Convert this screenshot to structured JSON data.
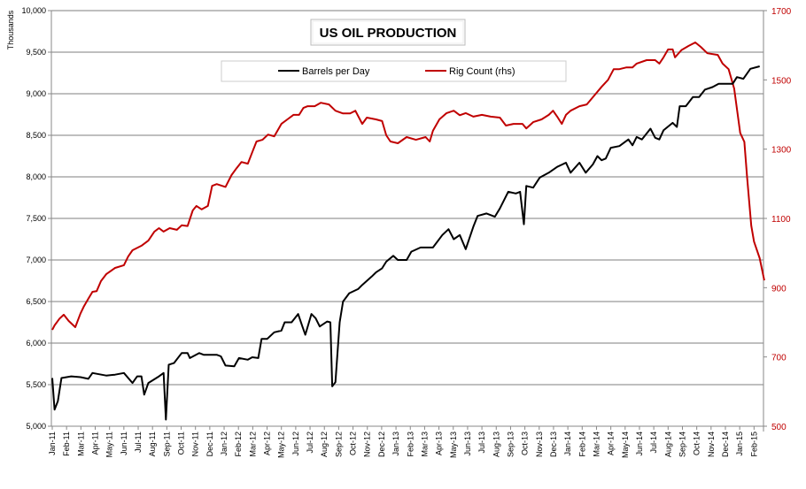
{
  "chart_data": {
    "type": "line",
    "title": "US OIL PRODUCTION",
    "ylabel": "Thousands",
    "ylim": [
      5000,
      10000
    ],
    "y_ticks": [
      "5,000",
      "5,500",
      "6,000",
      "6,500",
      "7,000",
      "7,500",
      "8,000",
      "8,500",
      "9,000",
      "9,500",
      "10,000"
    ],
    "y2lim": [
      500,
      1700
    ],
    "y2_ticks": [
      "500",
      "700",
      "900",
      "1100",
      "1300",
      "1500",
      "1700"
    ],
    "x_ticks": [
      "Jan-11",
      "Feb-11",
      "Mar-11",
      "Apr-11",
      "May-11",
      "Jun-11",
      "Jul-11",
      "Aug-11",
      "Sep-11",
      "Oct-11",
      "Nov-11",
      "Dec-11",
      "Jan-12",
      "Feb-12",
      "Mar-12",
      "Apr-12",
      "May-12",
      "Jun-12",
      "Jul-12",
      "Aug-12",
      "Sep-12",
      "Oct-12",
      "Nov-12",
      "Dec-12",
      "Jan-13",
      "Feb-13",
      "Mar-13",
      "Apr-13",
      "May-13",
      "Jun-13",
      "Jul-13",
      "Aug-13",
      "Sep-13",
      "Oct-13",
      "Nov-13",
      "Dec-13",
      "Jan-14",
      "Feb-14",
      "Mar-14",
      "Apr-14",
      "May-14",
      "Jun-14",
      "Jul-14",
      "Aug-14",
      "Sep-14",
      "Oct-14",
      "Nov-14",
      "Dec-14",
      "Jan-15",
      "Feb-15"
    ],
    "grid": true,
    "legend_placement": "top-center",
    "series": [
      {
        "name": "Barrels per Day",
        "axis": "left",
        "color": "#000000",
        "points": [
          [
            "2011-01-01",
            5580
          ],
          [
            "2011-01-06",
            5200
          ],
          [
            "2011-01-13",
            5300
          ],
          [
            "2011-01-21",
            5580
          ],
          [
            "2011-02-10",
            5600
          ],
          [
            "2011-02-28",
            5590
          ],
          [
            "2011-03-17",
            5570
          ],
          [
            "2011-03-26",
            5640
          ],
          [
            "2011-04-24",
            5610
          ],
          [
            "2011-05-13",
            5620
          ],
          [
            "2011-06-01",
            5640
          ],
          [
            "2011-06-19",
            5520
          ],
          [
            "2011-06-29",
            5600
          ],
          [
            "2011-07-08",
            5600
          ],
          [
            "2011-07-14",
            5380
          ],
          [
            "2011-07-23",
            5520
          ],
          [
            "2011-08-15",
            5600
          ],
          [
            "2011-08-25",
            5640
          ],
          [
            "2011-08-30",
            5080
          ],
          [
            "2011-09-05",
            5740
          ],
          [
            "2011-09-16",
            5760
          ],
          [
            "2011-10-02",
            5880
          ],
          [
            "2011-10-15",
            5880
          ],
          [
            "2011-10-20",
            5820
          ],
          [
            "2011-11-09",
            5880
          ],
          [
            "2011-11-18",
            5860
          ],
          [
            "2011-12-16",
            5860
          ],
          [
            "2011-12-25",
            5840
          ],
          [
            "2012-01-04",
            5730
          ],
          [
            "2012-01-23",
            5720
          ],
          [
            "2012-02-02",
            5820
          ],
          [
            "2012-02-20",
            5800
          ],
          [
            "2012-02-29",
            5830
          ],
          [
            "2012-03-13",
            5820
          ],
          [
            "2012-03-20",
            6050
          ],
          [
            "2012-04-01",
            6050
          ],
          [
            "2012-04-16",
            6130
          ],
          [
            "2012-05-01",
            6150
          ],
          [
            "2012-05-08",
            6250
          ],
          [
            "2012-05-23",
            6250
          ],
          [
            "2012-06-06",
            6350
          ],
          [
            "2012-06-15",
            6200
          ],
          [
            "2012-06-21",
            6100
          ],
          [
            "2012-07-04",
            6350
          ],
          [
            "2012-07-13",
            6300
          ],
          [
            "2012-07-22",
            6200
          ],
          [
            "2012-08-07",
            6260
          ],
          [
            "2012-08-14",
            6250
          ],
          [
            "2012-08-18",
            5480
          ],
          [
            "2012-08-25",
            5530
          ],
          [
            "2012-09-03",
            6250
          ],
          [
            "2012-09-10",
            6500
          ],
          [
            "2012-09-23",
            6600
          ],
          [
            "2012-10-12",
            6650
          ],
          [
            "2012-10-21",
            6700
          ],
          [
            "2012-11-10",
            6800
          ],
          [
            "2012-11-19",
            6850
          ],
          [
            "2012-12-02",
            6900
          ],
          [
            "2012-12-11",
            6980
          ],
          [
            "2012-12-26",
            7050
          ],
          [
            "2013-01-05",
            7000
          ],
          [
            "2013-01-24",
            7000
          ],
          [
            "2013-02-03",
            7100
          ],
          [
            "2013-02-21",
            7150
          ],
          [
            "2013-03-19",
            7150
          ],
          [
            "2013-04-08",
            7300
          ],
          [
            "2013-04-21",
            7370
          ],
          [
            "2013-05-02",
            7250
          ],
          [
            "2013-05-15",
            7300
          ],
          [
            "2013-05-28",
            7130
          ],
          [
            "2013-06-13",
            7400
          ],
          [
            "2013-06-22",
            7530
          ],
          [
            "2013-07-11",
            7560
          ],
          [
            "2013-07-29",
            7520
          ],
          [
            "2013-08-09",
            7620
          ],
          [
            "2013-08-27",
            7820
          ],
          [
            "2013-09-12",
            7800
          ],
          [
            "2013-09-21",
            7820
          ],
          [
            "2013-09-29",
            7430
          ],
          [
            "2013-10-04",
            7890
          ],
          [
            "2013-10-19",
            7870
          ],
          [
            "2013-11-02",
            7990
          ],
          [
            "2013-11-21",
            8050
          ],
          [
            "2013-12-09",
            8120
          ],
          [
            "2013-12-28",
            8170
          ],
          [
            "2014-01-07",
            8050
          ],
          [
            "2014-01-26",
            8170
          ],
          [
            "2014-02-08",
            8050
          ],
          [
            "2014-02-22",
            8150
          ],
          [
            "2014-03-03",
            8250
          ],
          [
            "2014-03-12",
            8200
          ],
          [
            "2014-03-21",
            8220
          ],
          [
            "2014-04-01",
            8350
          ],
          [
            "2014-04-19",
            8370
          ],
          [
            "2014-05-08",
            8450
          ],
          [
            "2014-05-17",
            8380
          ],
          [
            "2014-05-26",
            8480
          ],
          [
            "2014-06-06",
            8450
          ],
          [
            "2014-06-24",
            8580
          ],
          [
            "2014-07-04",
            8470
          ],
          [
            "2014-07-13",
            8450
          ],
          [
            "2014-07-22",
            8560
          ],
          [
            "2014-08-11",
            8650
          ],
          [
            "2014-08-20",
            8600
          ],
          [
            "2014-08-26",
            8850
          ],
          [
            "2014-09-08",
            8850
          ],
          [
            "2014-09-23",
            8960
          ],
          [
            "2014-10-06",
            8960
          ],
          [
            "2014-10-19",
            9050
          ],
          [
            "2014-11-04",
            9080
          ],
          [
            "2014-11-17",
            9120
          ],
          [
            "2014-12-06",
            9120
          ],
          [
            "2014-12-17",
            9120
          ],
          [
            "2014-12-26",
            9200
          ],
          [
            "2015-01-09",
            9180
          ],
          [
            "2015-01-24",
            9300
          ],
          [
            "2015-02-12",
            9330
          ]
        ]
      },
      {
        "name": "Rig Count (rhs)",
        "axis": "right",
        "color": "#C00000",
        "points": [
          [
            "2011-01-01",
            778
          ],
          [
            "2011-01-06",
            791
          ],
          [
            "2011-01-17",
            811
          ],
          [
            "2011-01-26",
            822
          ],
          [
            "2011-02-05",
            804
          ],
          [
            "2011-02-18",
            786
          ],
          [
            "2011-02-28",
            825
          ],
          [
            "2011-03-07",
            845
          ],
          [
            "2011-03-17",
            868
          ],
          [
            "2011-03-26",
            888
          ],
          [
            "2011-04-04",
            890
          ],
          [
            "2011-04-13",
            919
          ],
          [
            "2011-04-24",
            939
          ],
          [
            "2011-05-13",
            957
          ],
          [
            "2011-06-01",
            965
          ],
          [
            "2011-06-10",
            990
          ],
          [
            "2011-06-19",
            1008
          ],
          [
            "2011-07-08",
            1021
          ],
          [
            "2011-07-23",
            1036
          ],
          [
            "2011-08-05",
            1062
          ],
          [
            "2011-08-15",
            1072
          ],
          [
            "2011-08-25",
            1062
          ],
          [
            "2011-09-07",
            1072
          ],
          [
            "2011-09-22",
            1067
          ],
          [
            "2011-10-02",
            1080
          ],
          [
            "2011-10-15",
            1078
          ],
          [
            "2011-10-26",
            1123
          ],
          [
            "2011-11-03",
            1136
          ],
          [
            "2011-11-14",
            1126
          ],
          [
            "2011-11-27",
            1136
          ],
          [
            "2011-12-06",
            1194
          ],
          [
            "2011-12-16",
            1199
          ],
          [
            "2012-01-04",
            1191
          ],
          [
            "2012-01-17",
            1225
          ],
          [
            "2012-01-28",
            1245
          ],
          [
            "2012-02-07",
            1263
          ],
          [
            "2012-02-20",
            1258
          ],
          [
            "2012-02-29",
            1291
          ],
          [
            "2012-03-09",
            1322
          ],
          [
            "2012-03-22",
            1327
          ],
          [
            "2012-04-03",
            1342
          ],
          [
            "2012-04-16",
            1337
          ],
          [
            "2012-05-01",
            1373
          ],
          [
            "2012-05-14",
            1386
          ],
          [
            "2012-05-27",
            1399
          ],
          [
            "2012-06-08",
            1399
          ],
          [
            "2012-06-17",
            1419
          ],
          [
            "2012-06-26",
            1424
          ],
          [
            "2012-07-11",
            1424
          ],
          [
            "2012-07-24",
            1434
          ],
          [
            "2012-08-11",
            1429
          ],
          [
            "2012-08-25",
            1411
          ],
          [
            "2012-09-10",
            1403
          ],
          [
            "2012-09-25",
            1403
          ],
          [
            "2012-10-06",
            1411
          ],
          [
            "2012-10-21",
            1373
          ],
          [
            "2012-10-31",
            1391
          ],
          [
            "2012-11-19",
            1386
          ],
          [
            "2012-12-02",
            1381
          ],
          [
            "2012-12-11",
            1340
          ],
          [
            "2012-12-20",
            1322
          ],
          [
            "2013-01-05",
            1317
          ],
          [
            "2013-01-24",
            1335
          ],
          [
            "2013-02-12",
            1327
          ],
          [
            "2013-03-03",
            1335
          ],
          [
            "2013-03-12",
            1322
          ],
          [
            "2013-03-19",
            1353
          ],
          [
            "2013-04-02",
            1386
          ],
          [
            "2013-04-17",
            1404
          ],
          [
            "2013-05-02",
            1411
          ],
          [
            "2013-05-15",
            1398
          ],
          [
            "2013-05-28",
            1404
          ],
          [
            "2013-06-13",
            1394
          ],
          [
            "2013-07-01",
            1399
          ],
          [
            "2013-07-20",
            1394
          ],
          [
            "2013-08-09",
            1391
          ],
          [
            "2013-08-22",
            1368
          ],
          [
            "2013-09-07",
            1373
          ],
          [
            "2013-09-26",
            1373
          ],
          [
            "2013-10-04",
            1360
          ],
          [
            "2013-10-19",
            1378
          ],
          [
            "2013-11-06",
            1386
          ],
          [
            "2013-11-21",
            1399
          ],
          [
            "2013-11-30",
            1411
          ],
          [
            "2013-12-09",
            1394
          ],
          [
            "2013-12-19",
            1373
          ],
          [
            "2013-12-28",
            1399
          ],
          [
            "2014-01-07",
            1411
          ],
          [
            "2014-01-26",
            1424
          ],
          [
            "2014-02-10",
            1429
          ],
          [
            "2014-02-22",
            1450
          ],
          [
            "2014-03-12",
            1480
          ],
          [
            "2014-03-26",
            1500
          ],
          [
            "2014-04-07",
            1531
          ],
          [
            "2014-04-19",
            1531
          ],
          [
            "2014-05-04",
            1536
          ],
          [
            "2014-05-17",
            1536
          ],
          [
            "2014-05-26",
            1547
          ],
          [
            "2014-06-16",
            1557
          ],
          [
            "2014-07-04",
            1557
          ],
          [
            "2014-07-13",
            1547
          ],
          [
            "2014-07-22",
            1565
          ],
          [
            "2014-08-01",
            1588
          ],
          [
            "2014-08-11",
            1588
          ],
          [
            "2014-08-16",
            1565
          ],
          [
            "2014-08-30",
            1586
          ],
          [
            "2014-09-14",
            1598
          ],
          [
            "2014-09-28",
            1608
          ],
          [
            "2014-10-10",
            1595
          ],
          [
            "2014-10-24",
            1577
          ],
          [
            "2014-11-15",
            1572
          ],
          [
            "2014-11-25",
            1547
          ],
          [
            "2014-12-08",
            1531
          ],
          [
            "2014-12-20",
            1475
          ],
          [
            "2015-01-02",
            1347
          ],
          [
            "2015-01-11",
            1321
          ],
          [
            "2015-01-17",
            1219
          ],
          [
            "2015-01-26",
            1079
          ],
          [
            "2015-02-01",
            1033
          ],
          [
            "2015-02-12",
            985
          ],
          [
            "2015-02-21",
            921
          ]
        ]
      }
    ]
  }
}
